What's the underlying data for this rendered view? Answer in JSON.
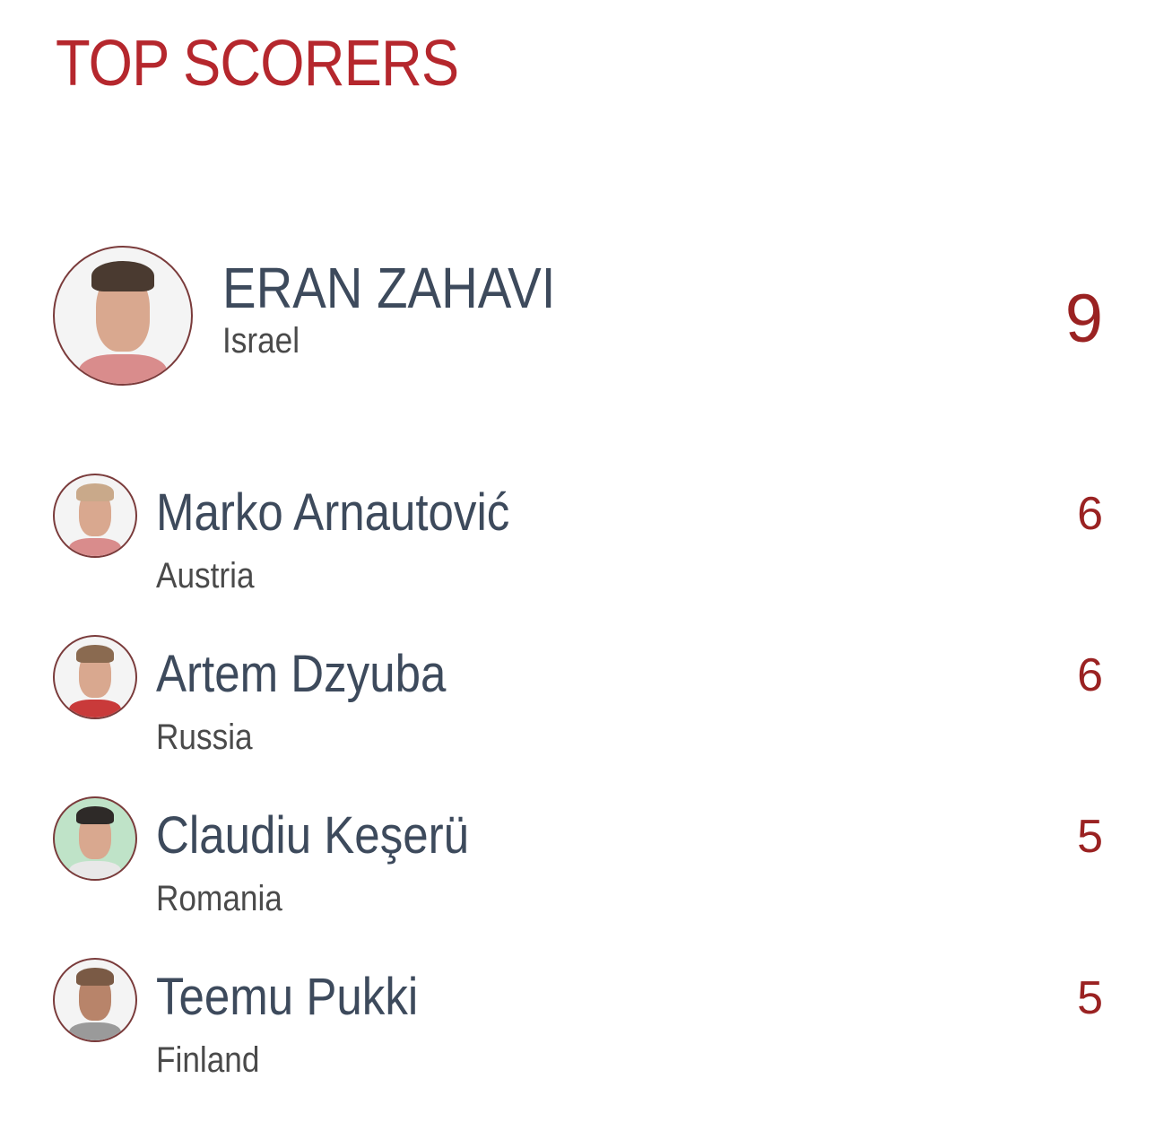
{
  "title": "TOP SCORERS",
  "top_scorer": {
    "name": "ERAN ZAHAVI",
    "country": "Israel",
    "goals": "9"
  },
  "scorers": [
    {
      "name": "Marko Arnautović",
      "country": "Austria",
      "goals": "6"
    },
    {
      "name": "Artem Dzyuba",
      "country": "Russia",
      "goals": "6"
    },
    {
      "name": "Claudiu Keşerü",
      "country": "Romania",
      "goals": "5"
    },
    {
      "name": "Teemu Pukki",
      "country": "Finland",
      "goals": "5"
    }
  ],
  "colors": {
    "title": "#b5272d",
    "name": "#3d4a5c",
    "goals": "#9a2222"
  }
}
